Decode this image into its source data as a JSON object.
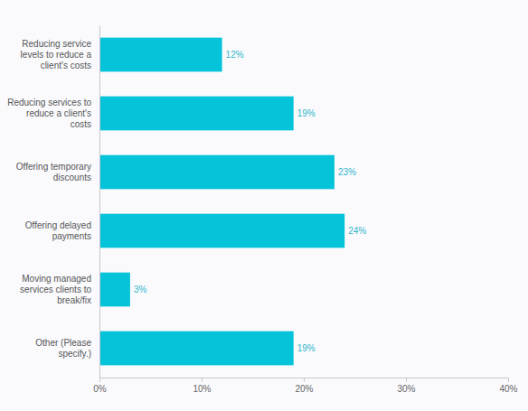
{
  "chart_data": {
    "type": "bar",
    "orientation": "horizontal",
    "categories": [
      "Reducing service levels to reduce a client's costs",
      "Reducing services to reduce a client's costs",
      "Offering temporary discounts",
      "Offering delayed payments",
      "Moving managed services clients to break/fix",
      "Other (Please specify.)"
    ],
    "values": [
      12,
      19,
      23,
      24,
      3,
      19
    ],
    "value_labels": [
      "12%",
      "19%",
      "23%",
      "24%",
      "3%",
      "19%"
    ],
    "data_labels": true,
    "color": "#05c3d9",
    "xlim": [
      0,
      40
    ],
    "xticks": [
      {
        "value": 0,
        "label": "0%"
      },
      {
        "value": 10,
        "label": "10%"
      },
      {
        "value": 20,
        "label": "20%"
      },
      {
        "value": 30,
        "label": "30%"
      },
      {
        "value": 40,
        "label": "40%"
      }
    ],
    "grid": false
  }
}
